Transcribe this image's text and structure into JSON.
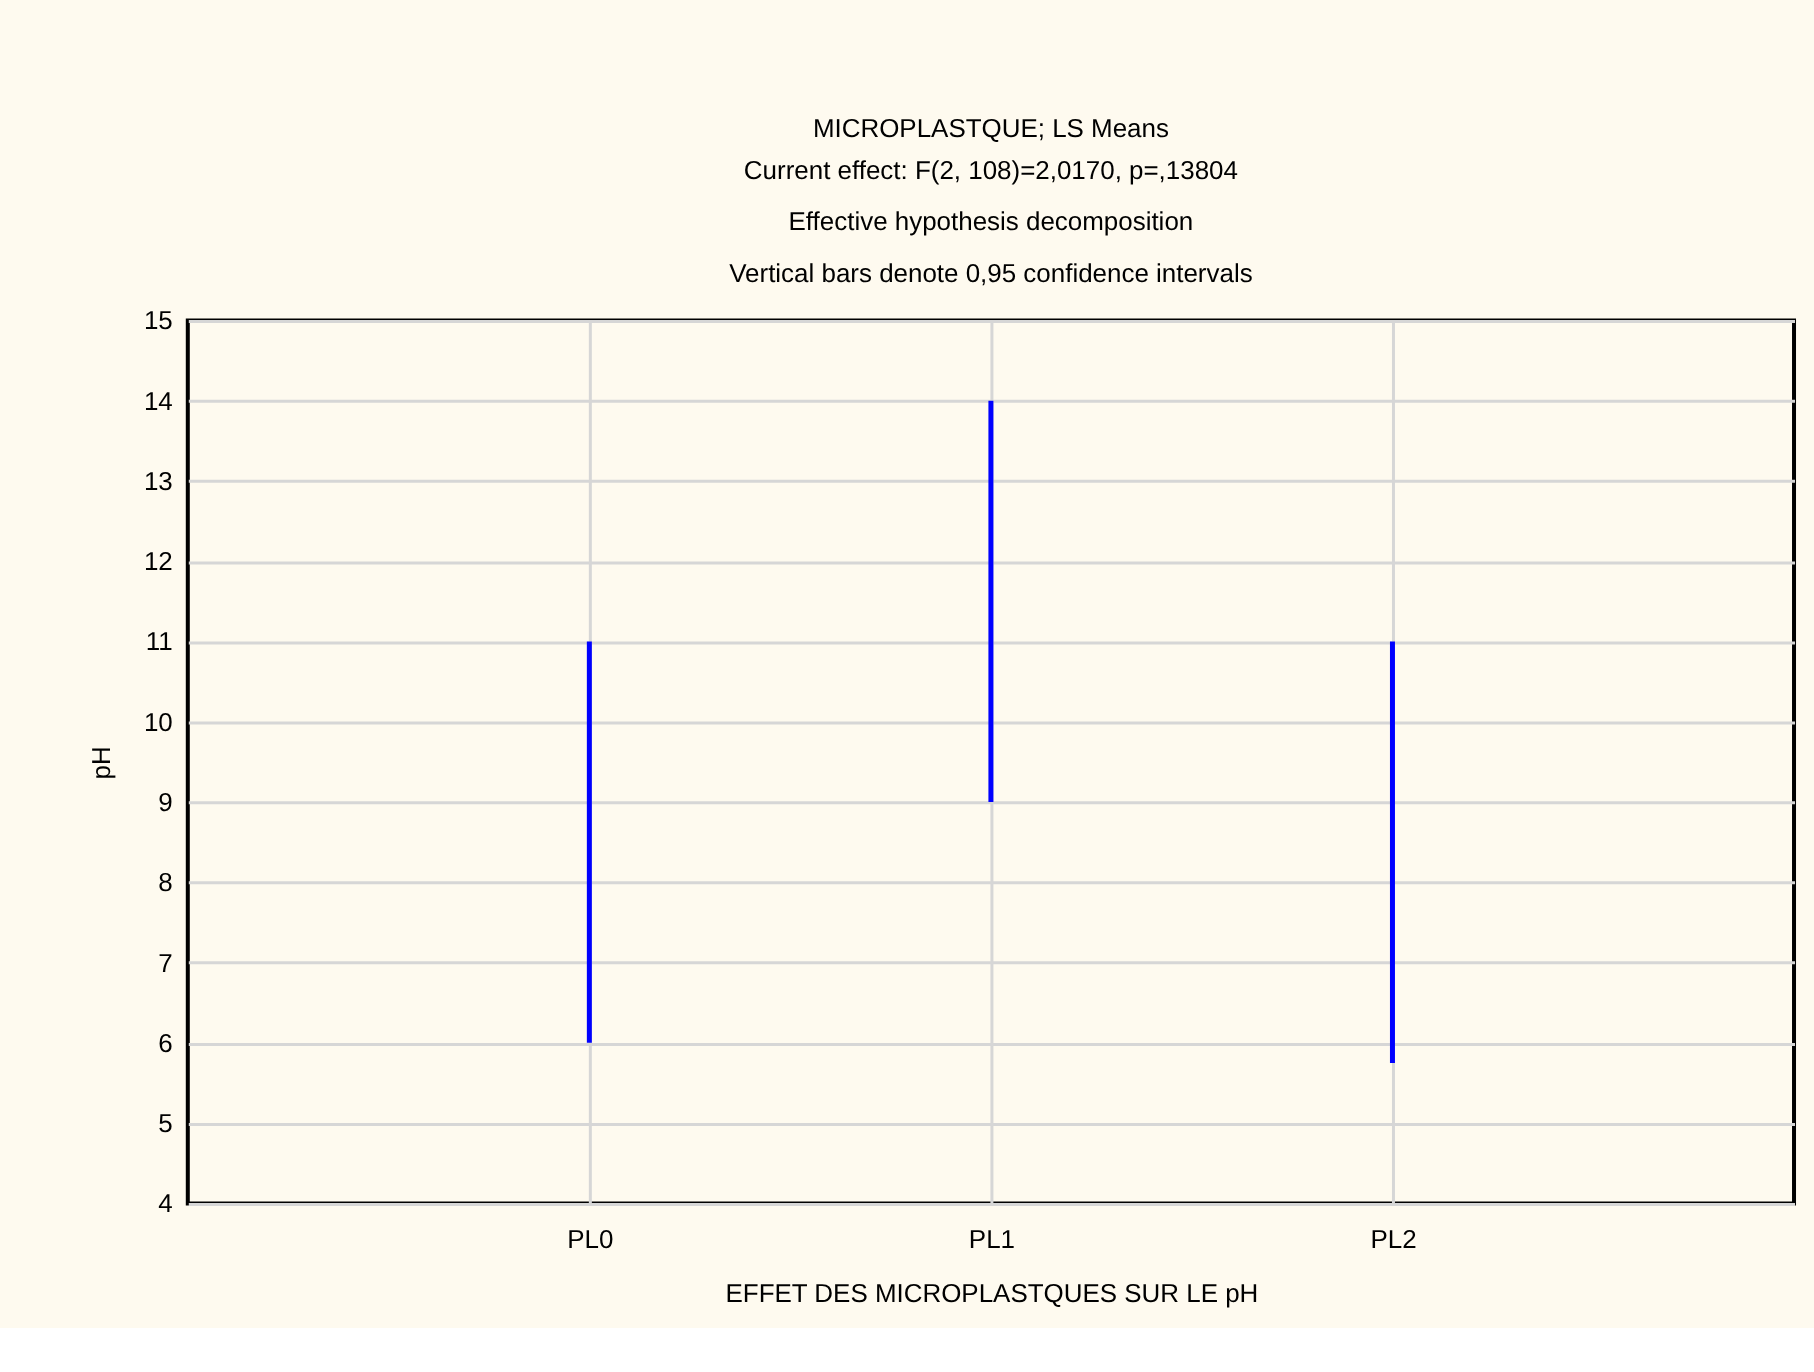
{
  "chart_data": {
    "type": "bar",
    "title": "MICROPLASTQUE; LS Means",
    "subtitle": "Current effect: F(2, 108)=2,0170, p=,13804\nEffective hypothesis decomposition\nVertical bars denote 0,95 confidence intervals",
    "xlabel": "EFFET DES MICROPLASTQUES SUR LE pH",
    "ylabel": "pH",
    "categories": [
      "PL0",
      "PL1",
      "PL2"
    ],
    "series": [
      {
        "color": "#0000ff",
        "values": [
          5,
          5,
          5.25
        ],
        "base": [
          6,
          9,
          5.75
        ]
      }
    ],
    "grid": true,
    "ylim": [
      4,
      15
    ],
    "yticks": [
      4,
      5,
      6,
      7,
      8,
      9,
      10,
      11,
      12,
      13,
      14,
      15
    ]
  }
}
